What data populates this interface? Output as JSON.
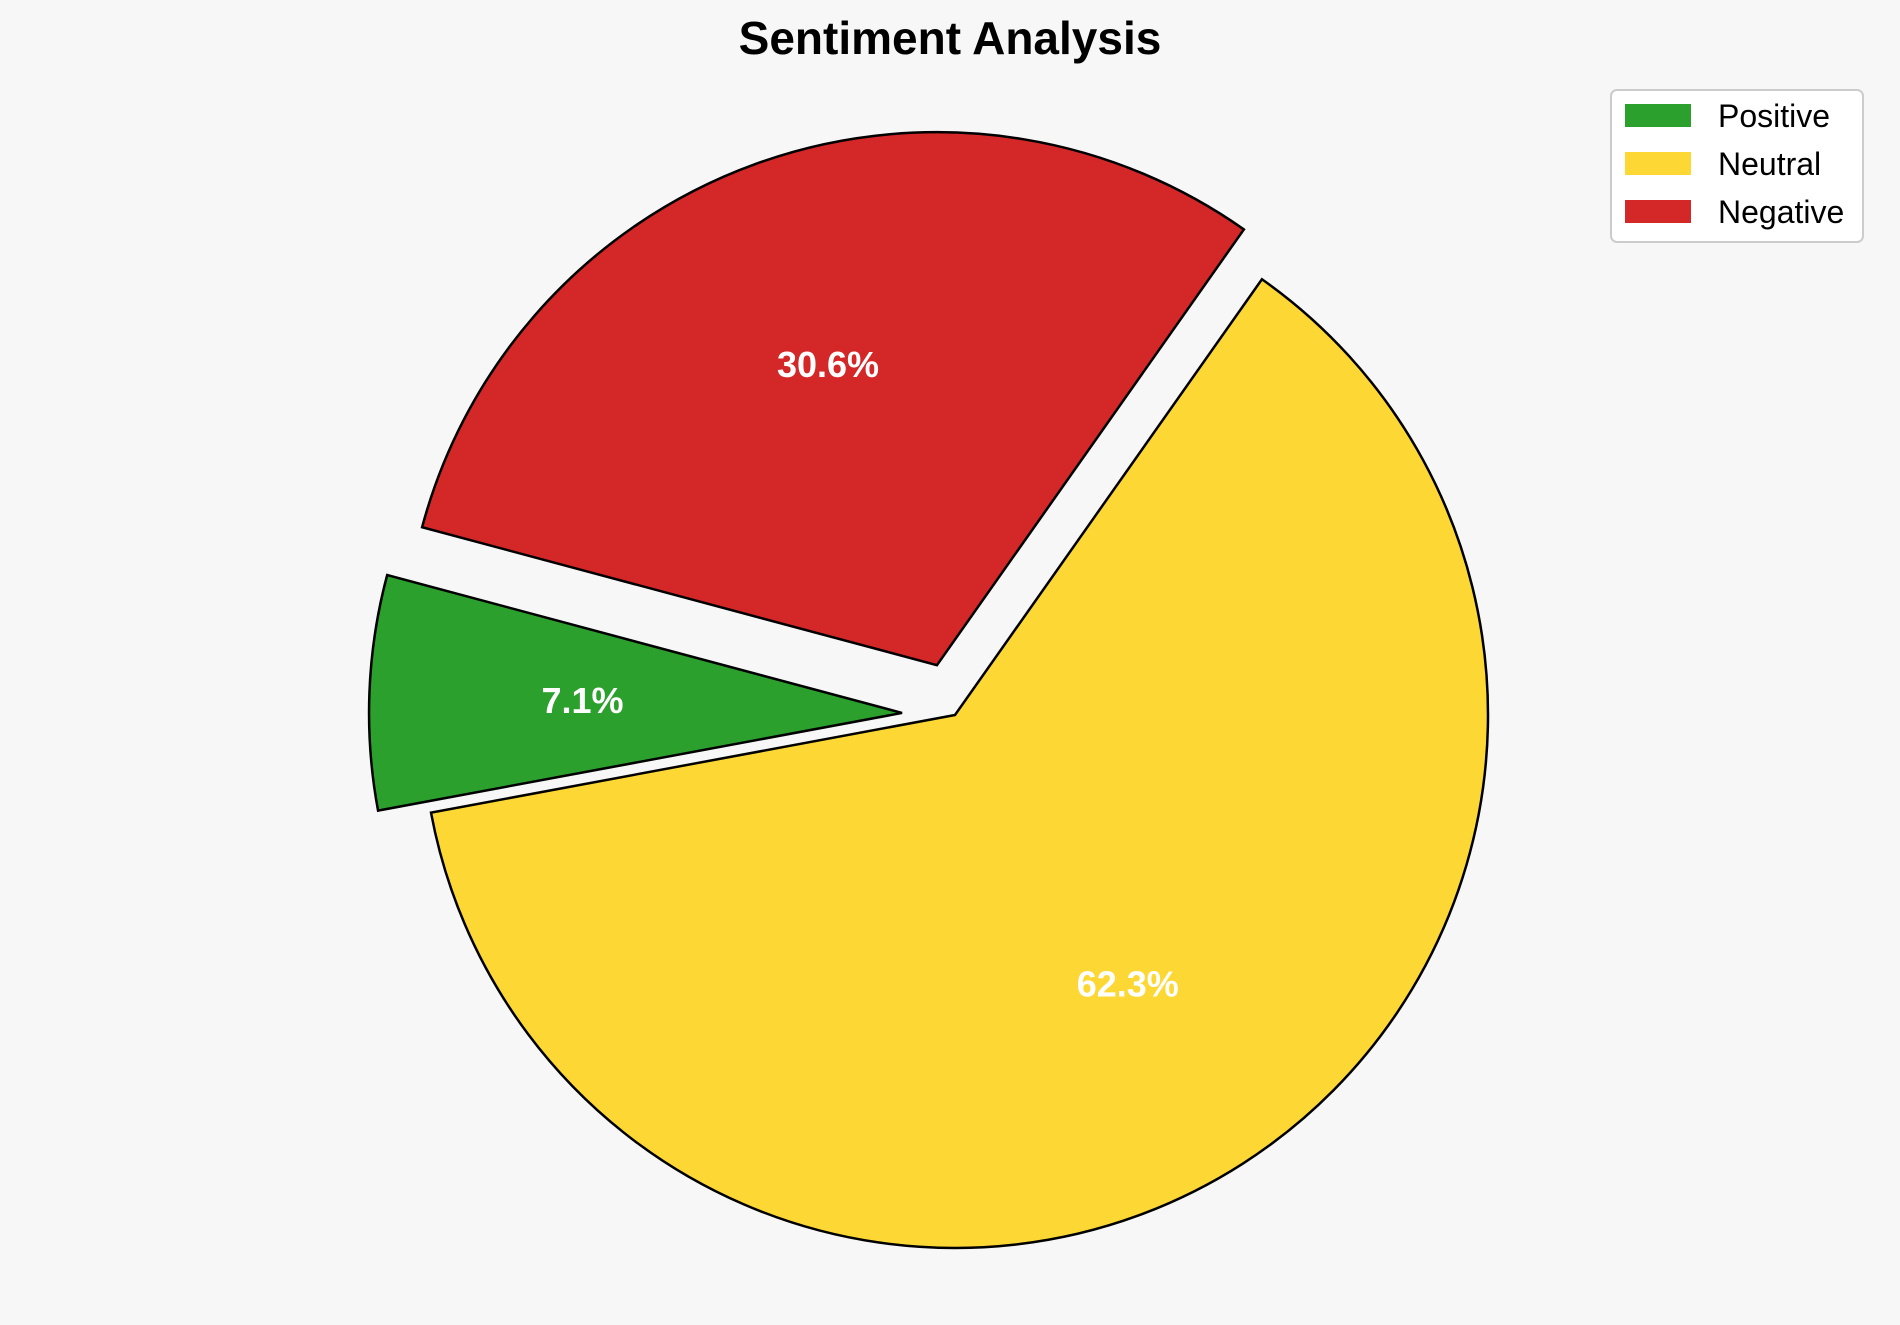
{
  "chart_data": {
    "type": "pie",
    "title": "Sentiment Analysis",
    "categories": [
      "Positive",
      "Neutral",
      "Negative"
    ],
    "values": [
      7.1,
      62.3,
      30.6
    ],
    "labels": [
      "7.1%",
      "62.3%",
      "30.6%"
    ],
    "colors": [
      "#2ca02c",
      "#fdd835",
      "#d32728"
    ],
    "exploded": [
      true,
      false,
      true
    ],
    "edge_color": "#000000",
    "legend_position": "top-right"
  },
  "background_color": "#f7f7f7"
}
